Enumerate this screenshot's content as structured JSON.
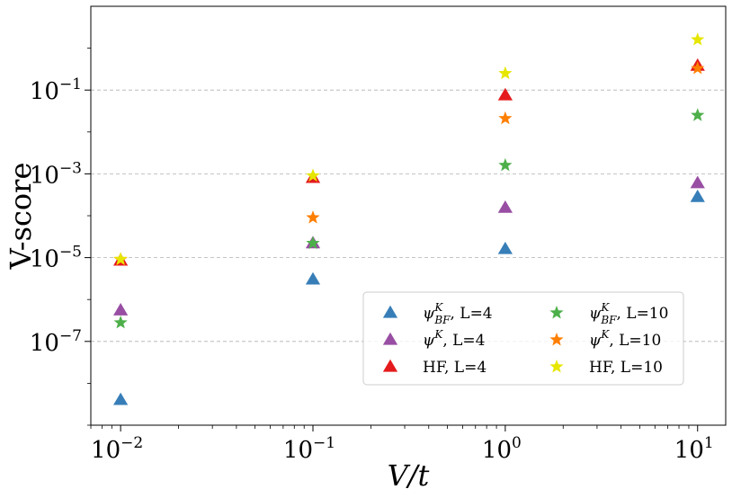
{
  "chart_data": {
    "type": "scatter",
    "xscale": "log",
    "yscale": "log",
    "xlim": [
      0.007,
      14
    ],
    "ylim": [
      1e-09,
      10.0
    ],
    "xlabel": "V/t",
    "ylabel": "V-score",
    "xticks": [
      {
        "value": 0.01,
        "base": "10",
        "exp": "−2"
      },
      {
        "value": 0.1,
        "base": "10",
        "exp": "−1"
      },
      {
        "value": 1,
        "base": "10",
        "exp": "0"
      },
      {
        "value": 10,
        "base": "10",
        "exp": "1"
      }
    ],
    "yticks": [
      {
        "value": 1e-07,
        "base": "10",
        "exp": "−7"
      },
      {
        "value": 1e-05,
        "base": "10",
        "exp": "−5"
      },
      {
        "value": 0.001,
        "base": "10",
        "exp": "−3"
      },
      {
        "value": 0.1,
        "base": "10",
        "exp": "−1"
      }
    ],
    "grid": "horizontal dashed at major y ticks",
    "legend_position": "lower-right",
    "series": [
      {
        "name": "ψ_BF^K, L=4",
        "marker": "triangle",
        "color": "#377eb8",
        "x": [
          0.01,
          0.1,
          1,
          10
        ],
        "y": [
          4e-09,
          3e-06,
          1.6e-05,
          0.00028
        ]
      },
      {
        "name": "ψ^K, L=4",
        "marker": "triangle",
        "color": "#984ea3",
        "x": [
          0.01,
          0.1,
          1,
          10
        ],
        "y": [
          5.5e-07,
          2.2e-05,
          0.000155,
          0.0006
        ]
      },
      {
        "name": "HF, L=4",
        "marker": "triangle",
        "color": "#e41a1c",
        "x": [
          0.01,
          0.1,
          1,
          10
        ],
        "y": [
          8.5e-06,
          0.0008,
          0.075,
          0.38
        ]
      },
      {
        "name": "ψ_BF^K, L=10",
        "marker": "star",
        "color": "#4daf4a",
        "x": [
          0.01,
          0.1,
          1,
          10
        ],
        "y": [
          2.8e-07,
          2.2e-05,
          0.0016,
          0.025
        ]
      },
      {
        "name": "ψ^K, L=10",
        "marker": "star",
        "color": "#ff7f00",
        "x": [
          0.01,
          0.1,
          1,
          10
        ],
        "y": [
          9e-06,
          9e-05,
          0.021,
          0.33
        ]
      },
      {
        "name": "HF, L=10",
        "marker": "star",
        "color": "#e6e600",
        "x": [
          0.01,
          0.1,
          1,
          10
        ],
        "y": [
          9.2e-06,
          0.0009,
          0.25,
          1.6
        ]
      }
    ]
  },
  "legend": {
    "items": [
      {
        "label": "ψ",
        "sup": "K",
        "sub": "BF",
        "suffix": ", L=4",
        "marker": "triangle",
        "color": "#377eb8"
      },
      {
        "label": "ψ",
        "sup": "K",
        "sub": "",
        "suffix": ", L=4",
        "marker": "triangle",
        "color": "#984ea3"
      },
      {
        "label": "HF",
        "sup": "",
        "sub": "",
        "suffix": ", L=4",
        "marker": "triangle",
        "color": "#e41a1c"
      },
      {
        "label": "ψ",
        "sup": "K",
        "sub": "BF",
        "suffix": ", L=10",
        "marker": "star",
        "color": "#4daf4a"
      },
      {
        "label": "ψ",
        "sup": "K",
        "sub": "",
        "suffix": ", L=10",
        "marker": "star",
        "color": "#ff7f00"
      },
      {
        "label": "HF",
        "sup": "",
        "sub": "",
        "suffix": ", L=10",
        "marker": "star",
        "color": "#e6e600"
      }
    ]
  }
}
